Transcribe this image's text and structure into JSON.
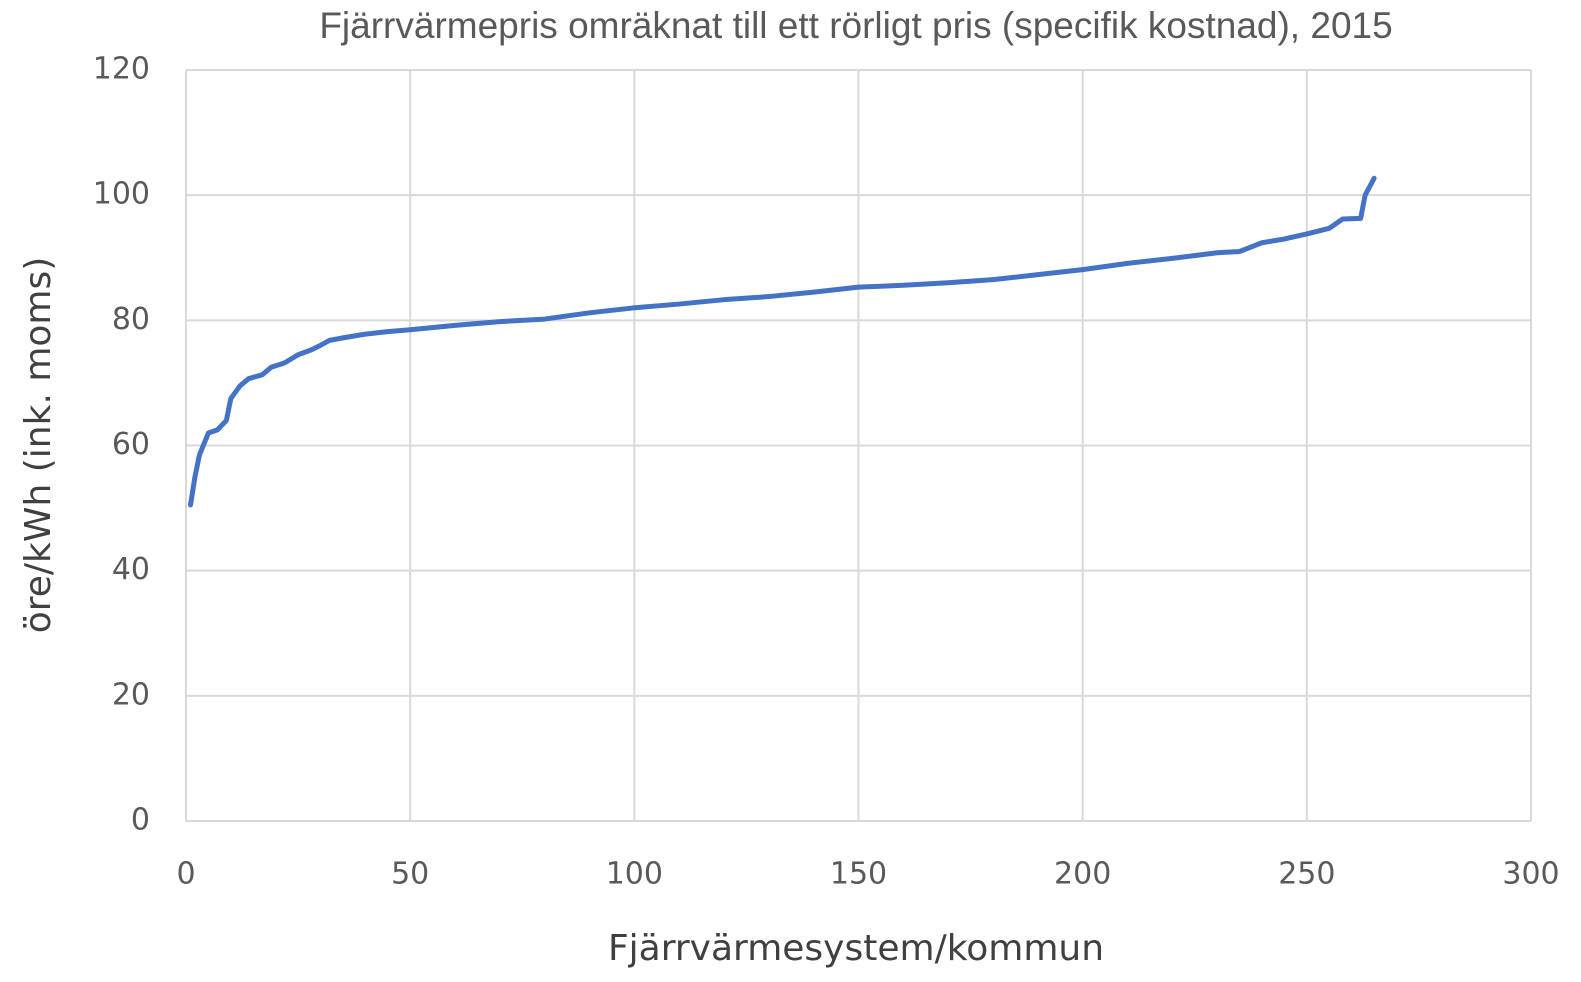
{
  "chart_data": {
    "type": "line",
    "title": "Fjärrvärmepris omräknat till ett rörligt pris (specifik kostnad), 2015",
    "xlabel": "Fjärrvärmesystem/kommun",
    "ylabel": "öre/kWh (ink. moms)",
    "x": [
      1,
      2,
      3,
      5,
      7,
      9,
      10,
      12,
      14,
      17,
      19,
      22,
      25,
      28,
      30,
      32,
      35,
      40,
      45,
      50,
      60,
      70,
      80,
      90,
      100,
      110,
      120,
      130,
      140,
      150,
      160,
      170,
      180,
      190,
      200,
      210,
      220,
      230,
      235,
      240,
      245,
      250,
      255,
      258,
      262,
      263,
      265
    ],
    "series": [
      {
        "name": "Fjärrvärmepris",
        "color": "#4472c4",
        "values": [
          50.5,
          55,
          58.5,
          62,
          62.5,
          64,
          67.5,
          69.5,
          70.7,
          71.3,
          72.5,
          73.2,
          74.5,
          75.3,
          76,
          76.8,
          77.2,
          77.8,
          78.2,
          78.5,
          79.2,
          79.8,
          80.2,
          81.2,
          82,
          82.6,
          83.3,
          83.8,
          84.5,
          85.3,
          85.6,
          86,
          86.5,
          87.3,
          88.1,
          89.1,
          89.9,
          90.8,
          91,
          92.4,
          93,
          93.8,
          94.7,
          96.2,
          96.3,
          100,
          102.7
        ]
      }
    ],
    "xlim": [
      0,
      300
    ],
    "xticks": [
      0,
      50,
      100,
      150,
      200,
      250,
      300
    ],
    "ylim": [
      0,
      120
    ],
    "yticks": [
      0,
      20,
      40,
      60,
      80,
      100,
      120
    ],
    "grid": true
  }
}
